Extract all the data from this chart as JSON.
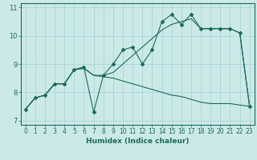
{
  "title": "",
  "xlabel": "Humidex (Indice chaleur)",
  "ylabel": "",
  "bg_color": "#cce9e9",
  "line_color": "#1a6b5a",
  "xlim": [
    -0.5,
    23.5
  ],
  "ylim": [
    6.85,
    11.15
  ],
  "yticks": [
    7,
    8,
    9,
    10,
    11
  ],
  "xticks": [
    0,
    1,
    2,
    3,
    4,
    5,
    6,
    7,
    8,
    9,
    10,
    11,
    12,
    13,
    14,
    15,
    16,
    17,
    18,
    19,
    20,
    21,
    22,
    23
  ],
  "curve1_x": [
    0,
    1,
    2,
    3,
    4,
    5,
    6,
    7,
    8,
    9,
    10,
    11,
    12,
    13,
    14,
    15,
    16,
    17,
    18,
    19,
    20,
    21,
    22,
    23
  ],
  "curve1_y": [
    7.4,
    7.8,
    7.9,
    8.3,
    8.3,
    8.8,
    8.9,
    7.3,
    8.6,
    9.0,
    9.5,
    9.6,
    9.0,
    9.5,
    10.5,
    10.75,
    10.4,
    10.75,
    10.25,
    10.25,
    10.25,
    10.25,
    10.1,
    7.5
  ],
  "curve2_x": [
    0,
    1,
    2,
    3,
    4,
    5,
    6,
    7,
    8,
    9,
    10,
    11,
    12,
    13,
    14,
    15,
    16,
    17,
    18,
    19,
    20,
    21,
    22,
    23
  ],
  "curve2_y": [
    7.4,
    7.8,
    7.9,
    8.3,
    8.3,
    8.8,
    8.85,
    8.6,
    8.55,
    8.5,
    8.4,
    8.3,
    8.2,
    8.1,
    8.0,
    7.9,
    7.85,
    7.75,
    7.65,
    7.6,
    7.6,
    7.6,
    7.55,
    7.5
  ],
  "curve3_x": [
    0,
    1,
    2,
    3,
    4,
    5,
    6,
    7,
    8,
    9,
    10,
    11,
    12,
    13,
    14,
    15,
    16,
    17,
    18,
    19,
    20,
    21,
    22,
    23
  ],
  "curve3_y": [
    7.4,
    7.8,
    7.9,
    8.3,
    8.3,
    8.8,
    8.85,
    8.6,
    8.6,
    8.7,
    9.0,
    9.3,
    9.6,
    9.9,
    10.2,
    10.4,
    10.5,
    10.6,
    10.25,
    10.25,
    10.25,
    10.25,
    10.1,
    7.5
  ],
  "grid_color": "#aad4d4",
  "spine_color": "#1a6b5a",
  "tick_fontsize": 5.5,
  "xlabel_fontsize": 6.5
}
